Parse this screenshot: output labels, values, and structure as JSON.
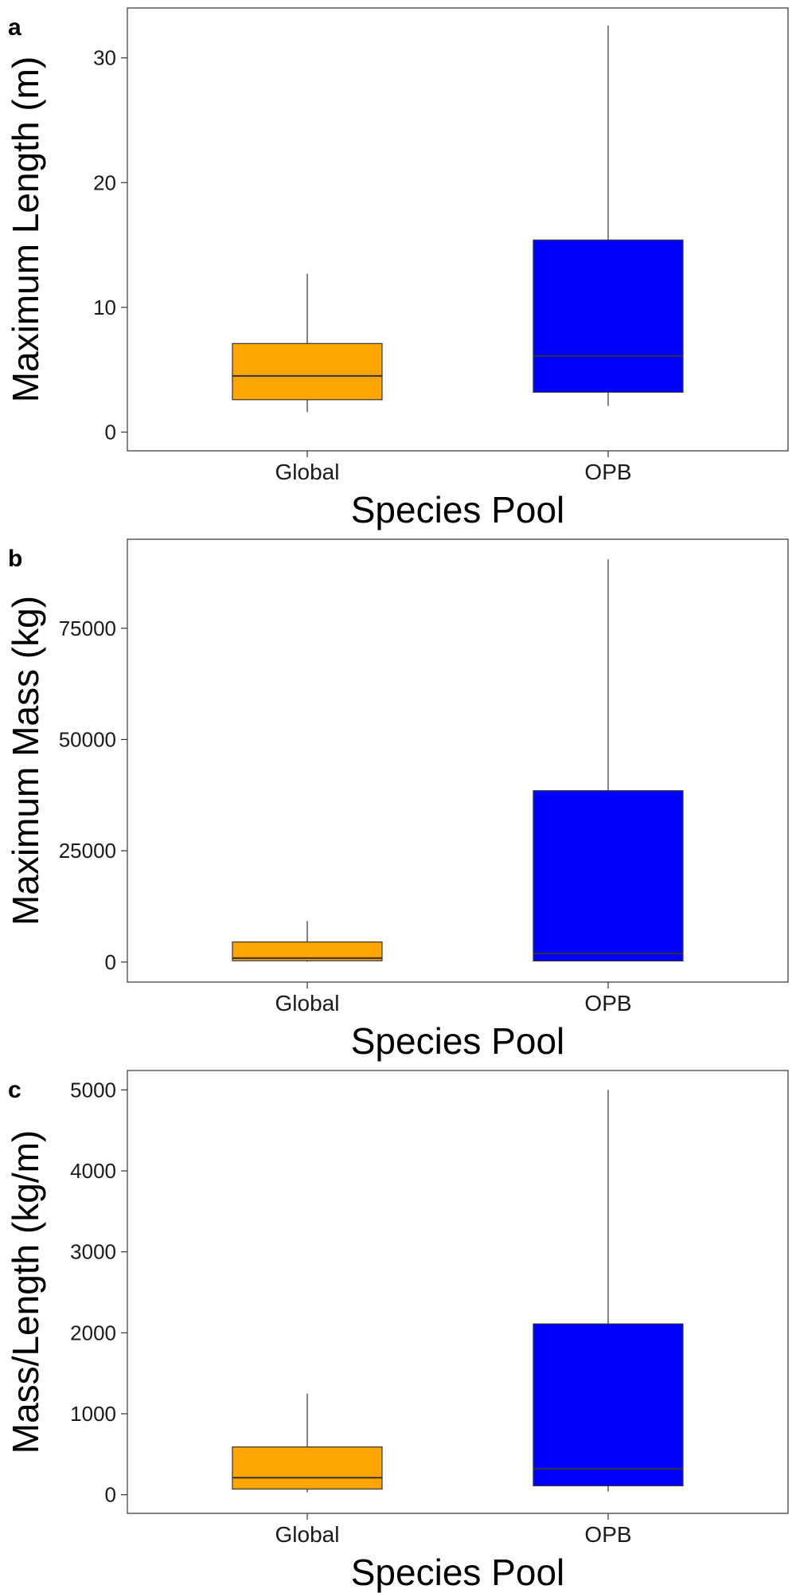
{
  "chart_data": [
    {
      "type": "boxplot",
      "panel": "a",
      "xlabel": "Species Pool",
      "ylabel": "Maximum Length (m)",
      "categories": [
        "Global",
        "OPB"
      ],
      "colors": [
        "#FFA500",
        "#0000FF"
      ],
      "ylim": [
        -1.5,
        34
      ],
      "yticks": [
        0,
        10,
        20,
        30
      ],
      "ytick_labels": [
        "0",
        "10",
        "20",
        "30"
      ],
      "boxes": [
        {
          "category": "Global",
          "whisker_low": 1.6,
          "q1": 2.6,
          "median": 4.5,
          "q3": 7.1,
          "whisker_high": 12.7
        },
        {
          "category": "OPB",
          "whisker_low": 2.1,
          "q1": 3.2,
          "median": 6.1,
          "q3": 15.4,
          "whisker_high": 32.6
        }
      ]
    },
    {
      "type": "boxplot",
      "panel": "b",
      "xlabel": "Species Pool",
      "ylabel": "Maximum Mass (kg)",
      "categories": [
        "Global",
        "OPB"
      ],
      "colors": [
        "#FFA500",
        "#0000FF"
      ],
      "ylim": [
        -4500,
        95000
      ],
      "yticks": [
        0,
        25000,
        50000,
        75000
      ],
      "ytick_labels": [
        "0",
        "25000",
        "50000",
        "75000"
      ],
      "boxes": [
        {
          "category": "Global",
          "whisker_low": 80,
          "q1": 300,
          "median": 900,
          "q3": 4500,
          "whisker_high": 9200
        },
        {
          "category": "OPB",
          "whisker_low": 150,
          "q1": 250,
          "median": 1900,
          "q3": 38500,
          "whisker_high": 90500
        }
      ]
    },
    {
      "type": "boxplot",
      "panel": "c",
      "xlabel": "Species Pool",
      "ylabel": "Mass/Length (kg/m)",
      "categories": [
        "Global",
        "OPB"
      ],
      "colors": [
        "#FFA500",
        "#0000FF"
      ],
      "ylim": [
        -230,
        5240
      ],
      "yticks": [
        0,
        1000,
        2000,
        3000,
        4000,
        5000
      ],
      "ytick_labels": [
        "0",
        "1000",
        "2000",
        "3000",
        "4000",
        "5000"
      ],
      "boxes": [
        {
          "category": "Global",
          "whisker_low": 30,
          "q1": 70,
          "median": 210,
          "q3": 590,
          "whisker_high": 1250
        },
        {
          "category": "OPB",
          "whisker_low": 40,
          "q1": 110,
          "median": 320,
          "q3": 2110,
          "whisker_high": 5000
        }
      ]
    }
  ]
}
